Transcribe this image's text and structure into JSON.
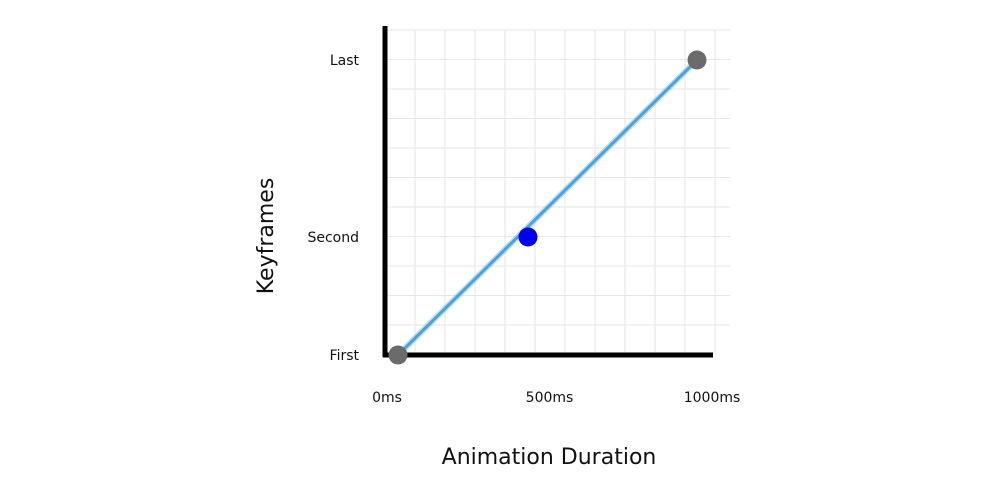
{
  "chart_data": {
    "type": "line",
    "xlabel": "Animation Duration",
    "ylabel": "Keyframes",
    "x_tick_labels": [
      {
        "value": 0,
        "label": "0ms"
      },
      {
        "value": 500,
        "label": "500ms"
      },
      {
        "value": 1000,
        "label": "1000ms"
      }
    ],
    "y_categories": [
      "First",
      "Second",
      "Last"
    ],
    "xlim": [
      0,
      1000
    ],
    "grid": true,
    "series": [
      {
        "points": [
          {
            "x": 40,
            "y": "First"
          },
          {
            "x": 440,
            "y": "Second"
          },
          {
            "x": 960,
            "y": "Last"
          }
        ],
        "line_color": "#4aa3df"
      }
    ],
    "point_colors": [
      "#6b6b6b",
      "#0000ee",
      "#6b6b6b"
    ]
  }
}
